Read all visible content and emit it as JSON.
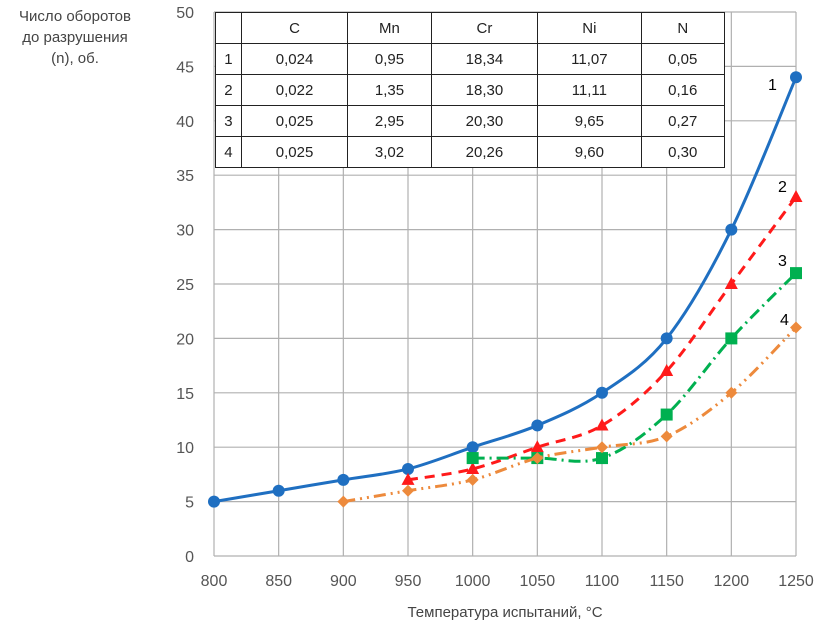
{
  "chart_data": {
    "type": "line",
    "title": "",
    "ylabel_lines": [
      "Число оборотов",
      "до разрушения",
      "(n), об."
    ],
    "xlabel": "Температура испытаний, °С",
    "xlim": [
      800,
      1250
    ],
    "ylim": [
      0,
      50
    ],
    "xticks": [
      800,
      850,
      900,
      950,
      1000,
      1050,
      1100,
      1150,
      1200,
      1250
    ],
    "yticks": [
      0,
      5,
      10,
      15,
      20,
      25,
      30,
      35,
      40,
      45,
      50
    ],
    "grid": true,
    "series": [
      {
        "name": "1",
        "color": "#1f6fc1",
        "marker": "circle",
        "dash": "",
        "x": [
          800,
          850,
          900,
          950,
          1000,
          1050,
          1100,
          1150,
          1200,
          1250
        ],
        "y": [
          5,
          6,
          7,
          8,
          10,
          12,
          15,
          20,
          30,
          44
        ]
      },
      {
        "name": "2",
        "color": "#ff1a1a",
        "marker": "triangle",
        "dash": "10,7",
        "x": [
          950,
          1000,
          1050,
          1100,
          1150,
          1200,
          1250
        ],
        "y": [
          7,
          8,
          10,
          12,
          17,
          25,
          33
        ]
      },
      {
        "name": "3",
        "color": "#00b050",
        "marker": "square",
        "dash": "12,5,2,5",
        "x": [
          1000,
          1050,
          1100,
          1150,
          1200,
          1250
        ],
        "y": [
          9,
          9,
          9,
          13,
          20,
          26
        ]
      },
      {
        "name": "4",
        "color": "#ed8a3c",
        "marker": "diamond",
        "dash": "12,5,2,5,2,5",
        "x": [
          900,
          950,
          1000,
          1050,
          1100,
          1150,
          1200,
          1250
        ],
        "y": [
          5,
          6,
          7,
          9,
          10,
          11,
          15,
          21
        ]
      }
    ],
    "table": {
      "header": [
        "",
        "C",
        "Mn",
        "Cr",
        "Ni",
        "N"
      ],
      "rows": [
        [
          "1",
          "0,024",
          "0,95",
          "18,34",
          "11,07",
          "0,05"
        ],
        [
          "2",
          "0,022",
          "1,35",
          "18,30",
          "11,11",
          "0,16"
        ],
        [
          "3",
          "0,025",
          "2,95",
          "20,30",
          "9,65",
          "0,27"
        ],
        [
          "4",
          "0,025",
          "3,02",
          "20,26",
          "9,60",
          "0,30"
        ]
      ]
    }
  }
}
